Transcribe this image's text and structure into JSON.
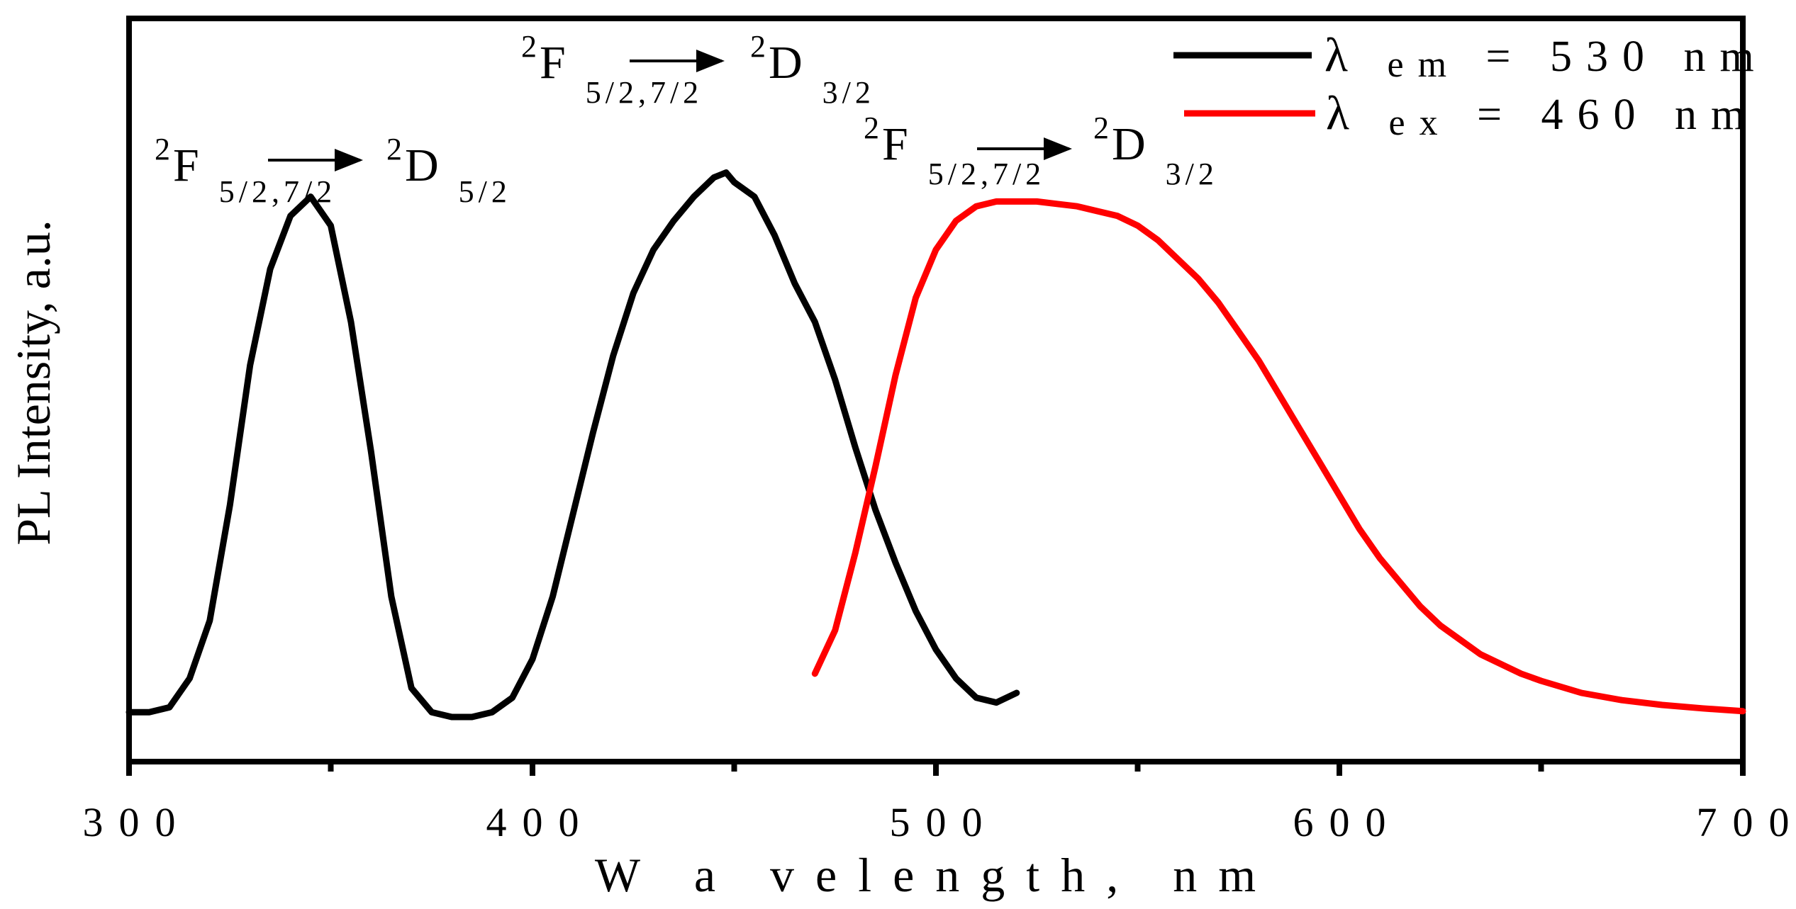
{
  "chart_data": {
    "type": "line",
    "title": "",
    "xlabel": "W a velength, nm",
    "ylabel": "PL Intensity, a.u.",
    "xlim": [
      300,
      700
    ],
    "ylim": [
      0,
      1.15
    ],
    "x_ticks": [
      300,
      400,
      500,
      600,
      700
    ],
    "x_tick_labels": [
      "300",
      "400",
      "500",
      "600",
      "700"
    ],
    "x_minor_ticks": [
      350,
      450,
      550,
      650
    ],
    "y_ticks_shown": false,
    "grid": false,
    "legend_position": "top-right",
    "legend": [
      {
        "symbol": "λ",
        "sub": "em",
        "text": "= 530 nm",
        "color": "#000000"
      },
      {
        "symbol": "λ",
        "sub": "ex",
        "text": "= 460 nm",
        "color": "#ff0000"
      }
    ],
    "series": [
      {
        "name": "λem = 530 nm",
        "color": "#000000",
        "x": [
          300,
          305,
          310,
          315,
          320,
          325,
          330,
          335,
          340,
          345,
          350,
          355,
          360,
          365,
          370,
          375,
          380,
          385,
          390,
          395,
          400,
          405,
          410,
          415,
          420,
          425,
          430,
          435,
          440,
          445,
          448,
          450,
          455,
          460,
          465,
          470,
          475,
          480,
          485,
          490,
          495,
          500,
          505,
          510,
          515,
          520
        ],
        "y": [
          0.01,
          0.01,
          0.02,
          0.08,
          0.2,
          0.44,
          0.73,
          0.93,
          1.04,
          1.08,
          1.02,
          0.82,
          0.55,
          0.25,
          0.06,
          0.01,
          0.0,
          0.0,
          0.01,
          0.04,
          0.12,
          0.25,
          0.42,
          0.59,
          0.75,
          0.88,
          0.97,
          1.03,
          1.08,
          1.12,
          1.13,
          1.11,
          1.08,
          1.0,
          0.9,
          0.82,
          0.7,
          0.56,
          0.43,
          0.32,
          0.22,
          0.14,
          0.08,
          0.04,
          0.03,
          0.05
        ]
      },
      {
        "name": "λex = 460 nm",
        "color": "#ff0000",
        "x": [
          470,
          475,
          480,
          485,
          490,
          495,
          500,
          505,
          510,
          515,
          520,
          525,
          530,
          535,
          540,
          545,
          550,
          555,
          560,
          565,
          570,
          575,
          580,
          585,
          590,
          595,
          600,
          605,
          610,
          615,
          620,
          625,
          630,
          635,
          640,
          645,
          650,
          660,
          670,
          680,
          690,
          700
        ],
        "y": [
          0.09,
          0.18,
          0.34,
          0.52,
          0.71,
          0.87,
          0.97,
          1.03,
          1.06,
          1.07,
          1.07,
          1.07,
          1.065,
          1.06,
          1.05,
          1.04,
          1.02,
          0.99,
          0.95,
          0.91,
          0.86,
          0.8,
          0.74,
          0.67,
          0.6,
          0.53,
          0.46,
          0.39,
          0.33,
          0.28,
          0.23,
          0.19,
          0.16,
          0.13,
          0.11,
          0.09,
          0.075,
          0.05,
          0.035,
          0.025,
          0.018,
          0.012
        ]
      }
    ],
    "annotations": [
      {
        "id": "ann-1",
        "sup1": "2",
        "main1": "F",
        "sub1": "5/2,7/2",
        "sup2": "2",
        "main2": "D",
        "sub2": "5/2",
        "at_x": 300,
        "at_y": 1.22
      },
      {
        "id": "ann-2",
        "sup1": "2",
        "main1": "F",
        "sub1": "5/2,7/2",
        "sup2": "2",
        "main2": "D",
        "sub2": "3/2",
        "at_x": 400,
        "at_y": 1.35
      },
      {
        "id": "ann-3",
        "sup1": "2",
        "main1": "F",
        "sub1": "5/2,7/2",
        "sup2": "2",
        "main2": "D",
        "sub2": "3/2",
        "at_x": 485,
        "at_y": 1.26
      }
    ]
  }
}
